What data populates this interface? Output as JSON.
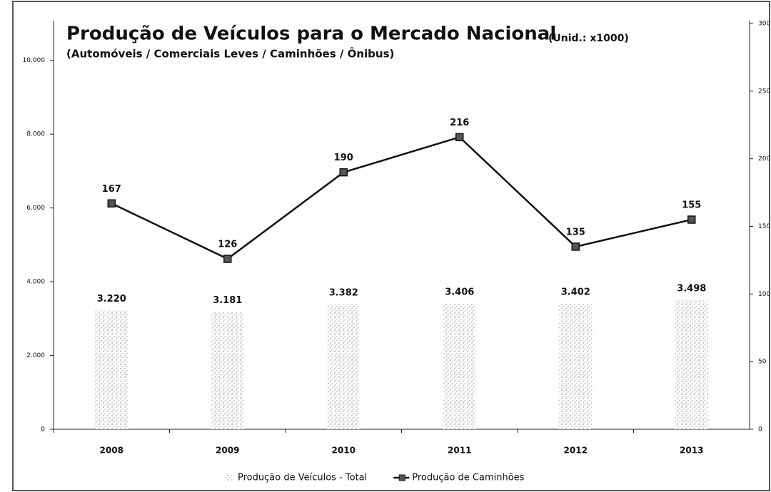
{
  "chart_data": {
    "type": "bar+line",
    "title": "Produção de Veículos para o Mercado Nacional",
    "unit_note": "(Unid.: x1000)",
    "subtitle": "(Automóveis / Comerciais Leves / Caminhões / Ônibus)",
    "categories": [
      "2008",
      "2009",
      "2010",
      "2011",
      "2012",
      "2013"
    ],
    "series": [
      {
        "name": "Produção  de Veículos - Total",
        "type": "bar",
        "color": "#9a9a9a",
        "values": [
          3220,
          3181,
          3382,
          3406,
          3402,
          3498
        ],
        "value_labels": [
          "3.220",
          "3.181",
          "3.382",
          "3.406",
          "3.402",
          "3.498"
        ]
      },
      {
        "name": "Produção de Caminhões",
        "type": "line",
        "color": "#111111",
        "axis": "y2",
        "values": [
          167,
          126,
          190,
          216,
          135,
          155
        ]
      }
    ],
    "ylim": [
      0,
      11000
    ],
    "yticks": [
      0,
      {
        "value": 2000,
        "label": "2.000"
      },
      {
        "value": 4000,
        "label": "4.000"
      },
      {
        "value": 6000,
        "label": "6.000"
      },
      {
        "value": 8000,
        "label": "8.000"
      },
      {
        "value": 10000,
        "label": "10.000"
      }
    ],
    "y2lim": [
      0,
      300
    ],
    "y2ticks": [
      0,
      50,
      100,
      150,
      200,
      250,
      300
    ],
    "legend": "bottom"
  }
}
